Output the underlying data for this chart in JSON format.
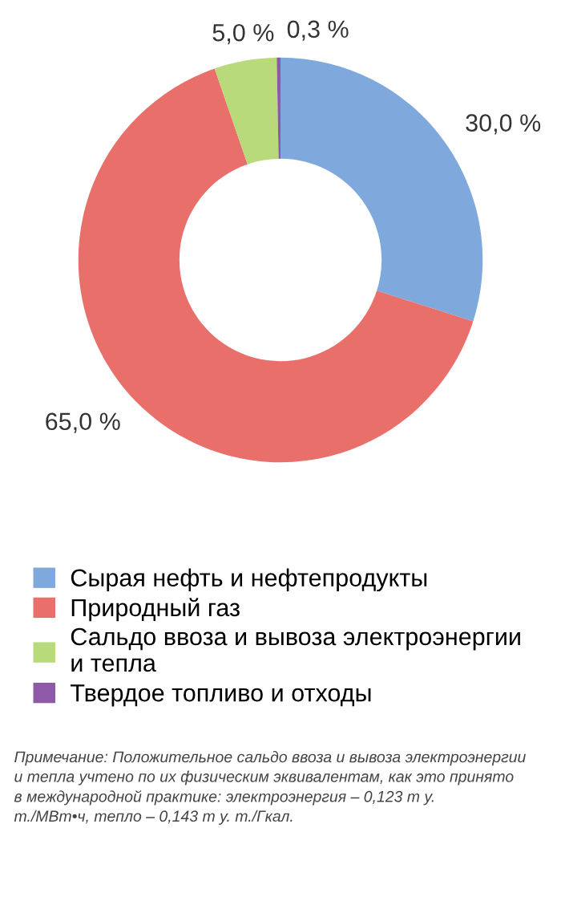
{
  "chart_data": {
    "type": "donut",
    "categories": [
      "Сырая нефть и нефтепродукты",
      "Природный газ",
      "Сальдо ввоза и вывоза электроэнергии и тепла",
      "Твердое топливо и отходы"
    ],
    "values": [
      30.0,
      65.0,
      5.0,
      0.3
    ],
    "value_labels": [
      "30,0 %",
      "65,0 %",
      "5,0 %",
      "0,3 %"
    ],
    "colors": [
      "#7fa9dc",
      "#e96f6b",
      "#b9da7a",
      "#8e5aa8"
    ],
    "legend": "bottom",
    "annotations": [
      "Примечание: Положительное сальдо ввоза и вывоза электроэнергии и тепла учтено по их физическим эквивалентам, как это принято в международной практике: электроэнергия – 0,123 т у. т./МВт•ч, тепло – 0,143 т у. т./Гкал."
    ]
  }
}
